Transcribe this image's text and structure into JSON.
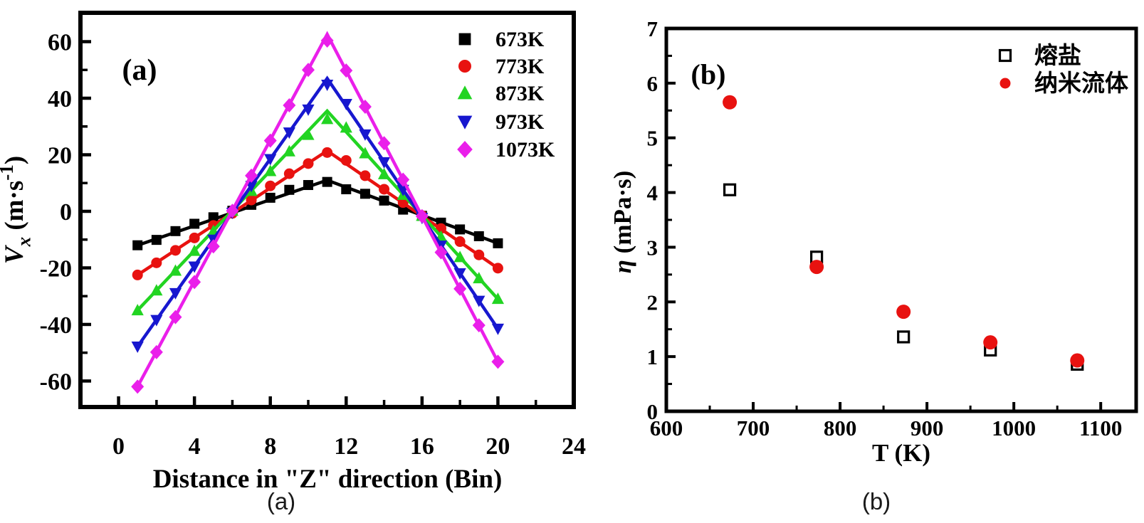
{
  "captions": {
    "a": "(a)",
    "b": "(b)"
  },
  "colors": {
    "axis": "#000000",
    "black": "#000000",
    "red": "#e81210",
    "green": "#22d422",
    "blue": "#1717cf",
    "magenta": "#ea1fea",
    "caption_text": "#1a1a1a",
    "background": "#ffffff"
  },
  "chart_data": [
    {
      "id": "a",
      "type": "line",
      "panel_label": "(a)",
      "xlabel": "Distance in \"Z\" direction (Bin)",
      "ylabel_runs": [
        {
          "t": "V",
          "s": "i"
        },
        {
          "t": "x",
          "s": "isub"
        },
        {
          "t": " (m·s",
          "s": "n"
        },
        {
          "t": "-1",
          "s": "sup"
        },
        {
          "t": ")",
          "s": "n"
        }
      ],
      "xlim": [
        -2,
        24
      ],
      "ylim": [
        -70,
        70
      ],
      "xticks": [
        0,
        4,
        8,
        12,
        16,
        20,
        24
      ],
      "yticks": [
        -60,
        -40,
        -20,
        0,
        20,
        40,
        60
      ],
      "xminor_step": 2,
      "yminor_step": 10,
      "grid": false,
      "legend_position": "upper-right",
      "x_bins": [
        1,
        2,
        3,
        4,
        5,
        6,
        7,
        8,
        9,
        10,
        11,
        12,
        13,
        14,
        15,
        16,
        17,
        18,
        19,
        20
      ],
      "series": [
        {
          "name": "673K",
          "color_key": "black",
          "marker": "square",
          "values": [
            -12.0,
            -10.1,
            -7.0,
            -4.4,
            -2.1,
            0.2,
            2.3,
            4.8,
            7.6,
            9.3,
            10.4,
            7.8,
            6.2,
            3.8,
            0.6,
            -1.6,
            -4.0,
            -6.4,
            -8.8,
            -11.3
          ],
          "fit_line_nodes": [
            [
              1,
              -12.0
            ],
            [
              11,
              11.0
            ],
            [
              20,
              -11.3
            ]
          ]
        },
        {
          "name": "773K",
          "color_key": "red",
          "marker": "circle",
          "values": [
            -22.5,
            -18.2,
            -13.8,
            -9.4,
            -5.0,
            -0.7,
            4.0,
            9.0,
            13.3,
            16.9,
            20.8,
            18.0,
            12.6,
            7.8,
            3.1,
            -1.5,
            -6.1,
            -10.7,
            -15.4,
            -20.1
          ],
          "fit_line_nodes": [
            [
              1,
              -22.5
            ],
            [
              11,
              21.4
            ],
            [
              20,
              -20.1
            ]
          ]
        },
        {
          "name": "873K",
          "color_key": "green",
          "marker": "triangle-up",
          "values": [
            -35.0,
            -28.0,
            -21.0,
            -14.0,
            -7.0,
            0.2,
            7.2,
            14.2,
            21.2,
            27.0,
            32.6,
            29.6,
            20.5,
            13.1,
            5.8,
            -1.6,
            -9.0,
            -16.2,
            -23.7,
            -31.0
          ],
          "fit_line_nodes": [
            [
              1,
              -35.0
            ],
            [
              11,
              35.5
            ],
            [
              20,
              -31.0
            ]
          ]
        },
        {
          "name": "973K",
          "color_key": "blue",
          "marker": "triangle-down",
          "values": [
            -47.8,
            -38.4,
            -28.9,
            -19.5,
            -10.0,
            -0.5,
            9.0,
            18.5,
            27.9,
            36.0,
            44.8,
            38.0,
            27.2,
            17.4,
            7.6,
            -2.3,
            -12.1,
            -21.9,
            -31.6,
            -41.5
          ],
          "fit_line_nodes": [
            [
              1,
              -47.8
            ],
            [
              11,
              47.0
            ],
            [
              20,
              -41.5
            ]
          ]
        },
        {
          "name": "1073K",
          "color_key": "magenta",
          "marker": "diamond",
          "values": [
            -62.0,
            -49.8,
            -37.4,
            -25.0,
            -12.4,
            0.2,
            12.6,
            25.0,
            37.5,
            50.0,
            60.4,
            49.8,
            37.0,
            24.1,
            11.2,
            -1.7,
            -14.5,
            -27.4,
            -40.3,
            -53.2
          ],
          "fit_line_nodes": [
            [
              1,
              -62.0
            ],
            [
              11,
              62.6
            ],
            [
              20,
              -53.2
            ]
          ]
        }
      ]
    },
    {
      "id": "b",
      "type": "scatter",
      "panel_label": "(b)",
      "xlabel": "T (K)",
      "ylabel_runs": [
        {
          "t": "η",
          "s": "i"
        },
        {
          "t": " (mPa·s)",
          "s": "n"
        }
      ],
      "xlim": [
        600,
        1141
      ],
      "ylim": [
        0,
        7
      ],
      "xticks": [
        600,
        700,
        800,
        900,
        1000,
        1100
      ],
      "yticks": [
        0,
        1,
        2,
        3,
        4,
        5,
        6,
        7
      ],
      "xminor_step": 50,
      "yminor_step": 0.5,
      "grid": false,
      "legend_position": "upper-right",
      "series": [
        {
          "name": "熔盐",
          "color_key": "black",
          "marker": "open-square",
          "x": [
            673,
            773,
            873,
            973,
            1073
          ],
          "values": [
            4.05,
            2.82,
            1.36,
            1.12,
            0.86
          ]
        },
        {
          "name": "纳米流体",
          "color_key": "red",
          "marker": "circle",
          "x": [
            673,
            773,
            873,
            973,
            1073
          ],
          "values": [
            5.65,
            2.64,
            1.82,
            1.26,
            0.93
          ]
        }
      ]
    }
  ]
}
